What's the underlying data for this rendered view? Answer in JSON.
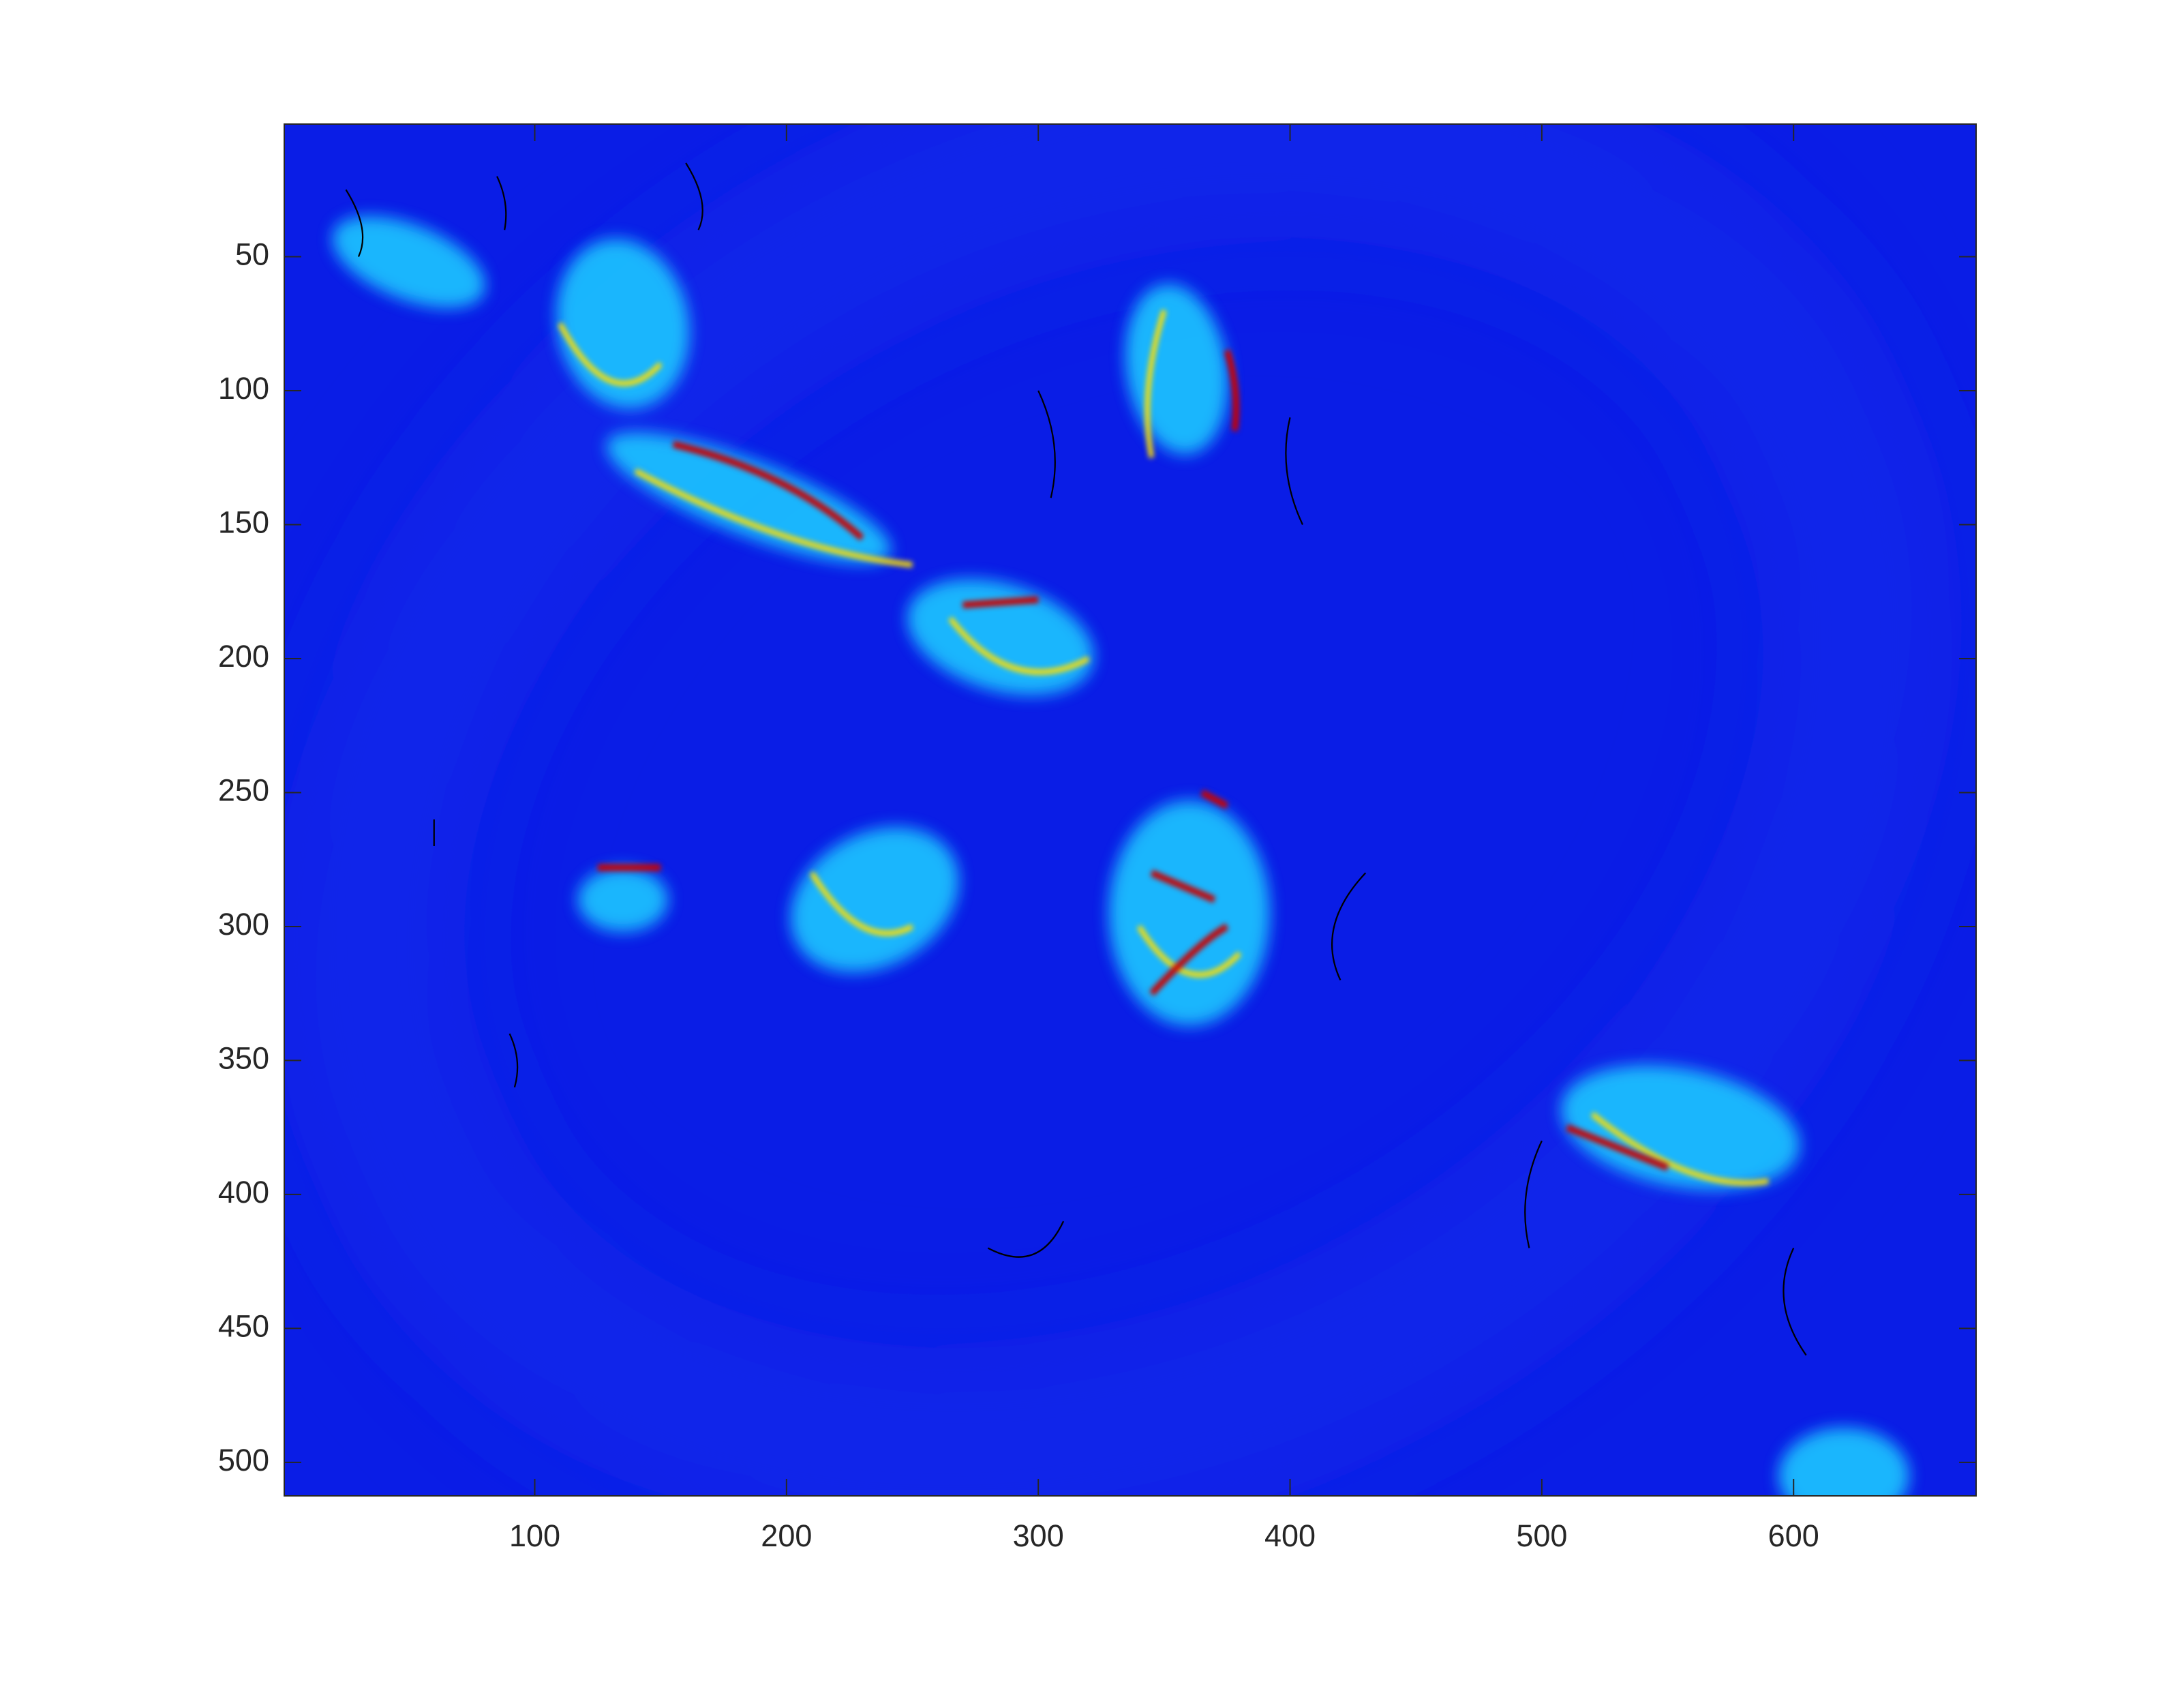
{
  "chart_data": {
    "type": "image",
    "xlim": [
      0.5,
      672.5
    ],
    "ylim": [
      0.5,
      512.5
    ],
    "y_reversed": true,
    "xticks": [
      100,
      200,
      300,
      400,
      500,
      600
    ],
    "yticks": [
      50,
      100,
      150,
      200,
      250,
      300,
      350,
      400,
      450,
      500
    ],
    "colormap": "jet",
    "box": true
  }
}
